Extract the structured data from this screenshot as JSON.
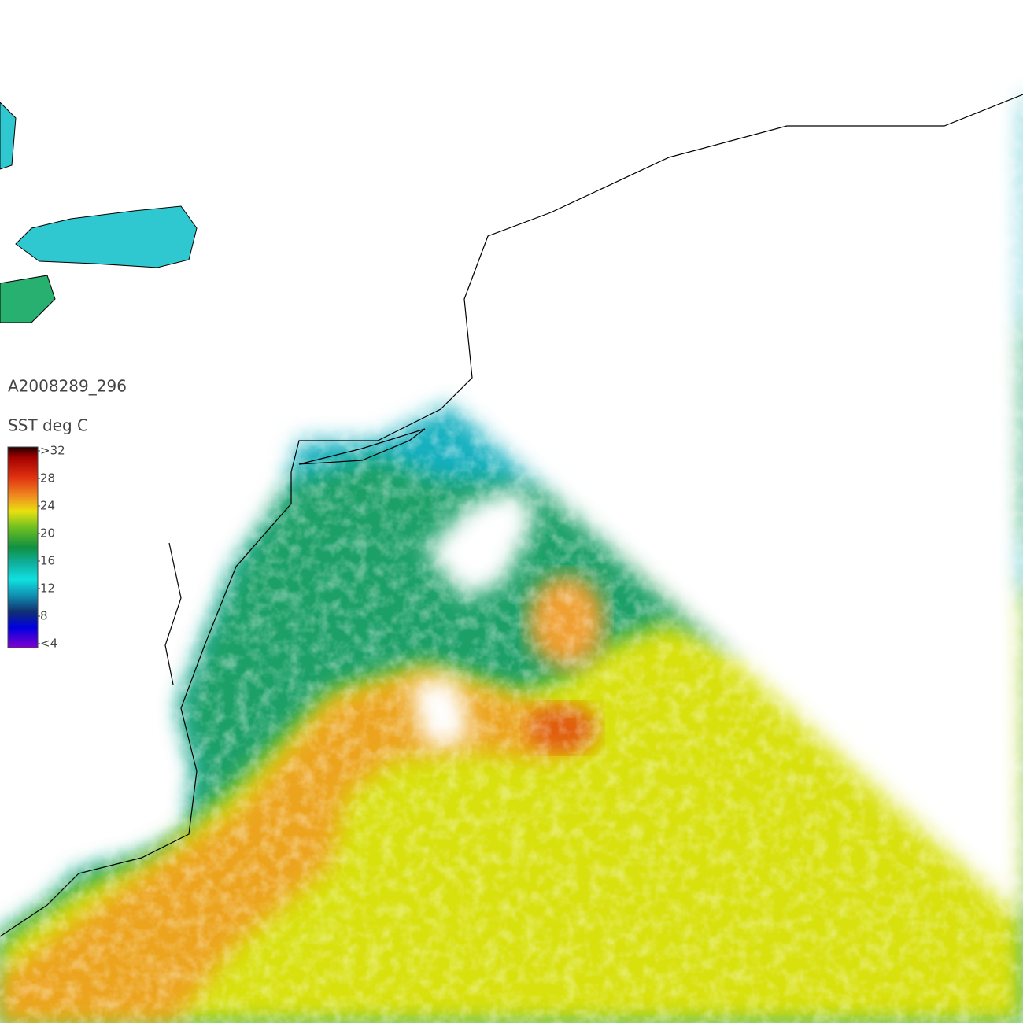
{
  "map": {
    "image_id": "A2008289_296",
    "legend": {
      "title": "SST deg C",
      "ticks": [
        {
          "value": 32,
          "label": ">32"
        },
        28,
        24,
        20,
        16,
        12,
        8,
        {
          "value": 4,
          "label": "<4"
        }
      ]
    }
  }
}
